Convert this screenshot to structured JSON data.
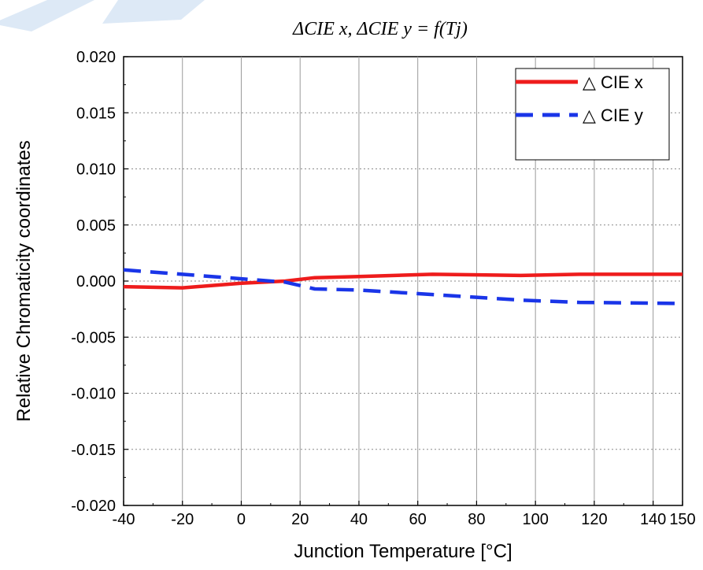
{
  "chart_data": {
    "type": "line",
    "title": "ΔCIE x, ΔCIE y = f(Tj)",
    "xlabel": "Junction Temperature [°C]",
    "ylabel": "Relative Chromaticity coordinates",
    "xlim": [
      -40,
      150
    ],
    "ylim": [
      -0.02,
      0.02
    ],
    "xticks": [
      -40,
      -20,
      0,
      20,
      40,
      60,
      80,
      100,
      120,
      140,
      150
    ],
    "xtick_labels": [
      "-40",
      "-20",
      "0",
      "20",
      "40",
      "60",
      "80",
      "100",
      "120",
      "140",
      "150"
    ],
    "yticks": [
      -0.02,
      -0.015,
      -0.01,
      -0.005,
      0,
      0.005,
      0.01,
      0.015,
      0.02
    ],
    "ytick_labels": [
      "-0.020",
      "-0.015",
      "-0.010",
      "-0.005",
      "0.000",
      "0.005",
      "0.010",
      "0.015",
      "0.020"
    ],
    "grid": true,
    "legend_position": "top-right",
    "series": [
      {
        "name": "△ CIE x",
        "color": "#ee1c1c",
        "style": "solid",
        "x": [
          -40,
          -20,
          0,
          15,
          25,
          40,
          65,
          95,
          115,
          150
        ],
        "y": [
          -0.0005,
          -0.0006,
          -0.0002,
          0.0,
          0.0003,
          0.0004,
          0.0006,
          0.0005,
          0.0006,
          0.0006
        ]
      },
      {
        "name": "△ CIE y",
        "color": "#1a35e8",
        "style": "dashed",
        "x": [
          -40,
          -20,
          0,
          15,
          25,
          40,
          65,
          95,
          115,
          150
        ],
        "y": [
          0.001,
          0.0006,
          0.0002,
          -0.0001,
          -0.0007,
          -0.0008,
          -0.0012,
          -0.0017,
          -0.0019,
          -0.002
        ]
      }
    ]
  }
}
